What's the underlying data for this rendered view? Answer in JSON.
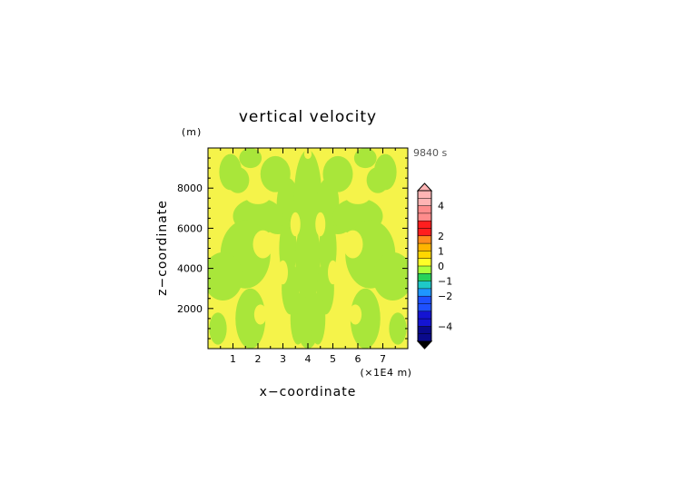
{
  "chart_data": {
    "type": "heatmap",
    "title": "vertical velocity",
    "xlabel": "x−coordinate",
    "ylabel": "z−coordinate",
    "x_unit": "(×1E4 m)",
    "y_unit": "(m)",
    "time_label": "9840 s",
    "xlim": [
      0,
      8
    ],
    "ylim": [
      0,
      10000
    ],
    "x_ticks": [
      "1",
      "2",
      "3",
      "4",
      "5",
      "6",
      "7"
    ],
    "y_ticks": [
      "2000",
      "4000",
      "6000",
      "8000"
    ],
    "grid": false,
    "legend_placement": "right",
    "colorbar": {
      "tick_labels": [
        "4",
        "2",
        "1",
        "0",
        "−1",
        "−2",
        "−4"
      ],
      "bands": [
        {
          "min": 4,
          "max": 5,
          "color": "#ffb4b4"
        },
        {
          "min": 3,
          "max": 4,
          "color": "#ff8c8c"
        },
        {
          "min": 2,
          "max": 3,
          "color": "#ff1e1e"
        },
        {
          "min": 1.5,
          "max": 2,
          "color": "#ff8c1e"
        },
        {
          "min": 1,
          "max": 1.5,
          "color": "#ffb400"
        },
        {
          "min": 0.5,
          "max": 1,
          "color": "#ffd700"
        },
        {
          "min": 0,
          "max": 0.5,
          "color": "#ffff28"
        },
        {
          "min": -0.5,
          "max": 0,
          "color": "#aaff3c"
        },
        {
          "min": -1,
          "max": -0.5,
          "color": "#28d25a"
        },
        {
          "min": -1.5,
          "max": -1,
          "color": "#1ec8c8"
        },
        {
          "min": -2,
          "max": -1.5,
          "color": "#1e96ff"
        },
        {
          "min": -3,
          "max": -2,
          "color": "#1e50ff"
        },
        {
          "min": -4,
          "max": -3,
          "color": "#1414d2"
        },
        {
          "min": -5,
          "max": -4,
          "color": "#0a0a8c"
        }
      ]
    },
    "field_colors": {
      "positive": "#f5f34a",
      "negative": "#a9e63a"
    },
    "regions_negative": [
      {
        "cx": 0.9,
        "cy": 8800,
        "rx": 0.45,
        "ry": 900
      },
      {
        "cx": 1.2,
        "cy": 8400,
        "rx": 0.45,
        "ry": 650
      },
      {
        "cx": 1.7,
        "cy": 9500,
        "rx": 0.45,
        "ry": 500
      },
      {
        "cx": 2.7,
        "cy": 8700,
        "rx": 0.6,
        "ry": 900
      },
      {
        "cx": 3.2,
        "cy": 7200,
        "rx": 0.45,
        "ry": 1300
      },
      {
        "cx": 2.8,
        "cy": 6400,
        "rx": 0.6,
        "ry": 700
      },
      {
        "cx": 3.2,
        "cy": 5000,
        "rx": 0.35,
        "ry": 1500
      },
      {
        "cx": 3.3,
        "cy": 3000,
        "rx": 0.35,
        "ry": 1300
      },
      {
        "cx": 3.6,
        "cy": 1500,
        "rx": 0.3,
        "ry": 1300
      },
      {
        "cx": 4.0,
        "cy": 7600,
        "rx": 0.55,
        "ry": 2300
      },
      {
        "cx": 4.0,
        "cy": 4400,
        "rx": 0.5,
        "ry": 2200
      },
      {
        "cx": 4.0,
        "cy": 1300,
        "rx": 0.45,
        "ry": 1300
      },
      {
        "cx": 4.8,
        "cy": 7200,
        "rx": 0.45,
        "ry": 1300
      },
      {
        "cx": 5.2,
        "cy": 8700,
        "rx": 0.6,
        "ry": 900
      },
      {
        "cx": 5.2,
        "cy": 6400,
        "rx": 0.6,
        "ry": 700
      },
      {
        "cx": 4.8,
        "cy": 5000,
        "rx": 0.35,
        "ry": 1500
      },
      {
        "cx": 4.7,
        "cy": 3000,
        "rx": 0.35,
        "ry": 1300
      },
      {
        "cx": 4.4,
        "cy": 1500,
        "rx": 0.3,
        "ry": 1300
      },
      {
        "cx": 6.3,
        "cy": 9500,
        "rx": 0.45,
        "ry": 500
      },
      {
        "cx": 6.8,
        "cy": 8400,
        "rx": 0.45,
        "ry": 650
      },
      {
        "cx": 7.1,
        "cy": 8800,
        "rx": 0.45,
        "ry": 900
      },
      {
        "cx": 6.0,
        "cy": 6600,
        "rx": 1.0,
        "ry": 900
      },
      {
        "cx": 6.5,
        "cy": 4700,
        "rx": 1.0,
        "ry": 1700
      },
      {
        "cx": 7.4,
        "cy": 3600,
        "rx": 0.8,
        "ry": 1200
      },
      {
        "cx": 6.3,
        "cy": 1500,
        "rx": 0.6,
        "ry": 1500
      },
      {
        "cx": 7.6,
        "cy": 1000,
        "rx": 0.35,
        "ry": 800
      },
      {
        "cx": 2.0,
        "cy": 6600,
        "rx": 1.0,
        "ry": 900
      },
      {
        "cx": 1.5,
        "cy": 4700,
        "rx": 1.0,
        "ry": 1700
      },
      {
        "cx": 0.6,
        "cy": 3600,
        "rx": 0.8,
        "ry": 1200
      },
      {
        "cx": 1.7,
        "cy": 1500,
        "rx": 0.6,
        "ry": 1500
      },
      {
        "cx": 0.4,
        "cy": 1000,
        "rx": 0.35,
        "ry": 800
      }
    ],
    "regions_positive": [
      {
        "cx": 2.0,
        "cy": 7600,
        "rx": 0.5,
        "ry": 400
      },
      {
        "cx": 6.0,
        "cy": 7600,
        "rx": 0.5,
        "ry": 400
      },
      {
        "cx": 2.2,
        "cy": 5200,
        "rx": 0.4,
        "ry": 700
      },
      {
        "cx": 5.8,
        "cy": 5200,
        "rx": 0.4,
        "ry": 700
      },
      {
        "cx": 2.1,
        "cy": 1700,
        "rx": 0.25,
        "ry": 500
      },
      {
        "cx": 5.9,
        "cy": 1700,
        "rx": 0.25,
        "ry": 500
      },
      {
        "cx": 3.5,
        "cy": 6200,
        "rx": 0.2,
        "ry": 600
      },
      {
        "cx": 4.5,
        "cy": 6200,
        "rx": 0.2,
        "ry": 600
      },
      {
        "cx": 3.0,
        "cy": 3800,
        "rx": 0.2,
        "ry": 600
      },
      {
        "cx": 5.0,
        "cy": 3800,
        "rx": 0.2,
        "ry": 600
      },
      {
        "cx": 2.8,
        "cy": 1500,
        "rx": 0.22,
        "ry": 500
      },
      {
        "cx": 5.2,
        "cy": 1500,
        "rx": 0.22,
        "ry": 500
      },
      {
        "cx": 3.4,
        "cy": 9800,
        "rx": 0.3,
        "ry": 400
      },
      {
        "cx": 4.6,
        "cy": 9800,
        "rx": 0.3,
        "ry": 400
      },
      {
        "cx": 4.0,
        "cy": 9700,
        "rx": 0.15,
        "ry": 250
      }
    ]
  }
}
